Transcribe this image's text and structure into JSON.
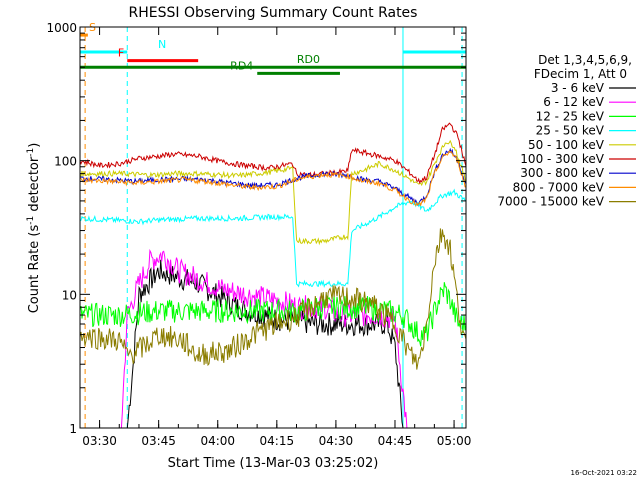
{
  "chart_data": {
    "type": "line",
    "title": "RHESSI Observing Summary Count Rates",
    "xlabel": "Start Time (13-Mar-03 03:25:02)",
    "ylabel_main": "Count Rate (s",
    "ylabel_sup": "-1",
    "ylabel_mid": " detector",
    "ylabel_sup2": "-1",
    "ylabel_end": ")",
    "y_scale": "log",
    "ylim": [
      1,
      1000
    ],
    "xlim_minutes_after_start": [
      0,
      98
    ],
    "x_ticks": [
      {
        "label": "03:30",
        "minute": 4.97
      },
      {
        "label": "03:45",
        "minute": 19.97
      },
      {
        "label": "04:00",
        "minute": 34.97
      },
      {
        "label": "04:15",
        "minute": 49.97
      },
      {
        "label": "04:30",
        "minute": 64.97
      },
      {
        "label": "04:45",
        "minute": 79.97
      },
      {
        "label": "05:00",
        "minute": 94.97
      }
    ],
    "y_ticks": [
      {
        "label": "1",
        "value": 1
      },
      {
        "label": "10",
        "value": 10
      },
      {
        "label": "100",
        "value": 100
      },
      {
        "label": "1000",
        "value": 1000
      }
    ],
    "legend_header_1": "Det 1,3,4,5,6,9,",
    "legend_header_2": "FDecim 1, Att 0",
    "legend_position": "right",
    "footer_date": "16-Oct-2021 03:22",
    "series": [
      {
        "name": "3 - 6 keV",
        "color": "#000000",
        "points": [
          [
            0,
            1
          ],
          [
            12,
            1
          ],
          [
            13.5,
            3
          ],
          [
            15,
            10
          ],
          [
            20,
            15
          ],
          [
            30,
            12
          ],
          [
            40,
            8
          ],
          [
            50,
            6.5
          ],
          [
            60,
            6
          ],
          [
            70,
            6
          ],
          [
            78,
            6
          ],
          [
            80,
            4
          ],
          [
            82,
            1
          ],
          [
            98,
            1
          ]
        ]
      },
      {
        "name": "6 - 12 keV",
        "color": "#ff00ff",
        "points": [
          [
            0,
            1
          ],
          [
            10.5,
            1
          ],
          [
            12,
            7
          ],
          [
            15,
            12
          ],
          [
            18,
            18
          ],
          [
            21,
            20
          ],
          [
            25,
            15
          ],
          [
            30,
            13
          ],
          [
            36,
            11
          ],
          [
            42,
            10
          ],
          [
            50,
            9
          ],
          [
            56,
            8
          ],
          [
            62,
            8
          ],
          [
            66,
            7
          ],
          [
            70,
            7
          ],
          [
            76,
            7
          ],
          [
            80,
            6.5
          ],
          [
            83,
            1
          ],
          [
            98,
            1
          ]
        ]
      },
      {
        "name": "12 - 25 keV",
        "color": "#00ff00",
        "points": [
          [
            0,
            7
          ],
          [
            10,
            7
          ],
          [
            20,
            7.5
          ],
          [
            30,
            7.5
          ],
          [
            40,
            7.5
          ],
          [
            50,
            7.5
          ],
          [
            56,
            7.5
          ],
          [
            60,
            8
          ],
          [
            66,
            8
          ],
          [
            72,
            8
          ],
          [
            78,
            7.5
          ],
          [
            82,
            7
          ],
          [
            84,
            6
          ],
          [
            86,
            5
          ],
          [
            88,
            5
          ],
          [
            91,
            9
          ],
          [
            92.5,
            11
          ],
          [
            94,
            9
          ],
          [
            96,
            6
          ]
        ]
      },
      {
        "name": "25 - 50 keV",
        "color": "#00ffff",
        "points": [
          [
            0,
            37
          ],
          [
            8,
            36
          ],
          [
            15,
            35
          ],
          [
            20,
            36
          ],
          [
            30,
            37
          ],
          [
            40,
            37
          ],
          [
            48,
            38
          ],
          [
            54,
            38
          ],
          [
            55,
            12
          ],
          [
            60,
            12
          ],
          [
            66,
            12
          ],
          [
            68,
            12
          ],
          [
            69,
            30
          ],
          [
            72,
            33
          ],
          [
            76,
            38
          ],
          [
            80,
            45
          ],
          [
            84,
            50
          ],
          [
            86,
            46
          ],
          [
            88,
            42
          ],
          [
            90,
            48
          ],
          [
            92,
            55
          ],
          [
            95,
            58
          ],
          [
            98,
            50
          ]
        ]
      },
      {
        "name": "50 - 100 keV",
        "color": "#cccc00",
        "points": [
          [
            0,
            80
          ],
          [
            10,
            80
          ],
          [
            18,
            78
          ],
          [
            24,
            80
          ],
          [
            30,
            80
          ],
          [
            40,
            77
          ],
          [
            48,
            82
          ],
          [
            54,
            88
          ],
          [
            55,
            25
          ],
          [
            58,
            25
          ],
          [
            62,
            25
          ],
          [
            67,
            27
          ],
          [
            68,
            27
          ],
          [
            69,
            80
          ],
          [
            72,
            85
          ],
          [
            76,
            95
          ],
          [
            80,
            85
          ],
          [
            84,
            72
          ],
          [
            86,
            65
          ],
          [
            88,
            70
          ],
          [
            91,
            110
          ],
          [
            93,
            140
          ],
          [
            95,
            130
          ],
          [
            98,
            70
          ]
        ]
      },
      {
        "name": "100 - 300 keV",
        "color": "#cc0000",
        "points": [
          [
            0,
            100
          ],
          [
            5,
            92
          ],
          [
            10,
            95
          ],
          [
            15,
            104
          ],
          [
            20,
            108
          ],
          [
            24,
            112
          ],
          [
            30,
            108
          ],
          [
            36,
            98
          ],
          [
            42,
            92
          ],
          [
            48,
            88
          ],
          [
            54,
            95
          ],
          [
            55,
            80
          ],
          [
            58,
            78
          ],
          [
            62,
            80
          ],
          [
            66,
            82
          ],
          [
            68,
            84
          ],
          [
            69,
            120
          ],
          [
            72,
            115
          ],
          [
            76,
            108
          ],
          [
            80,
            100
          ],
          [
            84,
            80
          ],
          [
            86,
            70
          ],
          [
            88,
            75
          ],
          [
            90,
            110
          ],
          [
            92,
            170
          ],
          [
            94,
            190
          ],
          [
            96,
            150
          ],
          [
            98,
            90
          ]
        ]
      },
      {
        "name": "300 - 800 keV",
        "color": "#0000cc",
        "points": [
          [
            0,
            74
          ],
          [
            8,
            72
          ],
          [
            14,
            70
          ],
          [
            20,
            72
          ],
          [
            26,
            73
          ],
          [
            32,
            72
          ],
          [
            38,
            68
          ],
          [
            44,
            65
          ],
          [
            50,
            66
          ],
          [
            56,
            75
          ],
          [
            62,
            80
          ],
          [
            68,
            78
          ],
          [
            72,
            72
          ],
          [
            76,
            70
          ],
          [
            80,
            62
          ],
          [
            84,
            52
          ],
          [
            86,
            48
          ],
          [
            88,
            55
          ],
          [
            90,
            82
          ],
          [
            92,
            110
          ],
          [
            94,
            120
          ],
          [
            96,
            100
          ],
          [
            98,
            65
          ]
        ]
      },
      {
        "name": "800 - 7000 keV",
        "color": "#ff8c00",
        "points": [
          [
            0,
            72
          ],
          [
            8,
            70
          ],
          [
            14,
            68
          ],
          [
            20,
            70
          ],
          [
            26,
            72
          ],
          [
            32,
            70
          ],
          [
            38,
            66
          ],
          [
            44,
            63
          ],
          [
            50,
            64
          ],
          [
            56,
            74
          ],
          [
            62,
            79
          ],
          [
            68,
            77
          ],
          [
            72,
            70
          ],
          [
            76,
            68
          ],
          [
            80,
            60
          ],
          [
            84,
            50
          ],
          [
            86,
            46
          ],
          [
            88,
            52
          ],
          [
            90,
            80
          ],
          [
            92,
            105
          ],
          [
            94,
            118
          ],
          [
            96,
            98
          ],
          [
            98,
            62
          ]
        ]
      },
      {
        "name": "7000 - 15000 keV",
        "color": "#8b7d00",
        "points": [
          [
            0,
            5
          ],
          [
            10,
            4.5
          ],
          [
            12,
            3.5
          ],
          [
            16,
            4
          ],
          [
            20,
            5
          ],
          [
            26,
            4.5
          ],
          [
            30,
            3.5
          ],
          [
            38,
            3.8
          ],
          [
            44,
            5
          ],
          [
            50,
            6
          ],
          [
            56,
            7
          ],
          [
            62,
            9.5
          ],
          [
            68,
            9.5
          ],
          [
            74,
            8.5
          ],
          [
            80,
            6
          ],
          [
            84,
            3.5
          ],
          [
            86,
            3
          ],
          [
            88,
            6
          ],
          [
            90,
            18
          ],
          [
            92,
            30
          ],
          [
            94,
            22
          ],
          [
            96,
            8
          ],
          [
            98,
            4
          ]
        ]
      }
    ],
    "segments": [
      {
        "label": "S",
        "color": "#ff8c00",
        "y": 870,
        "x": [
          0,
          2
        ]
      },
      {
        "label": "N",
        "color": "#00ffff",
        "y": 650,
        "x": [
          0,
          12
        ]
      },
      {
        "label": "N",
        "color": "#00ffff",
        "y": 650,
        "x": [
          82,
          98
        ]
      },
      {
        "label": "F",
        "color": "#ff0000",
        "y": 560,
        "x": [
          12,
          30
        ]
      },
      {
        "label": "RD0",
        "color": "#008000",
        "y": 500,
        "x": [
          0,
          98
        ]
      },
      {
        "label": "RD4",
        "color": "#008000",
        "y": 450,
        "x": [
          45,
          66
        ]
      }
    ],
    "vlines": [
      {
        "minute": 0,
        "color": "#00ffff",
        "style": "solid"
      },
      {
        "minute": 1.3,
        "color": "#ff8c00",
        "style": "dashed"
      },
      {
        "minute": 12,
        "color": "#00ffff",
        "style": "dashed"
      },
      {
        "minute": 82,
        "color": "#00ffff",
        "style": "solid"
      },
      {
        "minute": 97,
        "color": "#00ffff",
        "style": "dashed"
      }
    ]
  }
}
